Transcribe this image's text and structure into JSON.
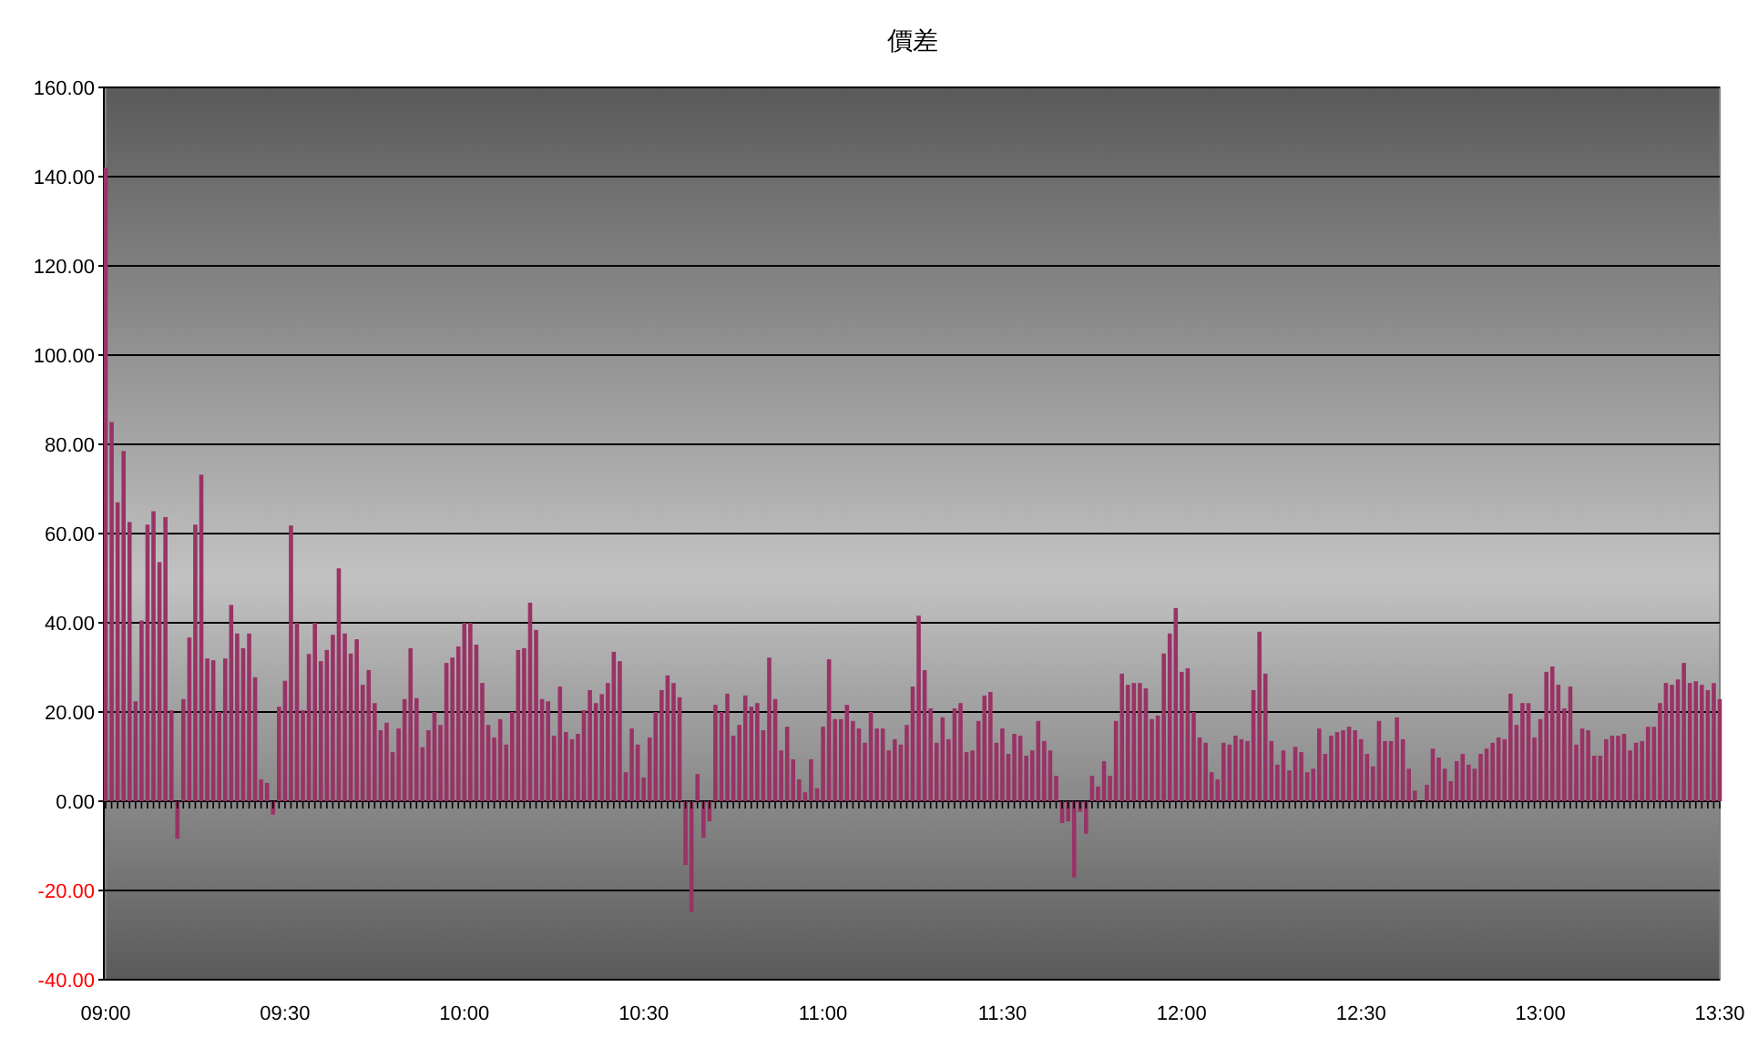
{
  "chart_data": {
    "type": "bar",
    "title": "價差",
    "categories": [
      "09:00",
      null,
      null,
      null,
      null,
      null,
      null,
      null,
      null,
      null,
      null,
      null,
      null,
      null,
      null,
      null,
      null,
      null,
      null,
      null,
      null,
      null,
      null,
      null,
      null,
      null,
      null,
      null,
      null,
      null,
      "09:30",
      null,
      null,
      null,
      null,
      null,
      null,
      null,
      null,
      null,
      null,
      null,
      null,
      null,
      null,
      null,
      null,
      null,
      null,
      null,
      null,
      null,
      null,
      null,
      null,
      null,
      null,
      null,
      null,
      null,
      "10:00",
      null,
      null,
      null,
      null,
      null,
      null,
      null,
      null,
      null,
      null,
      null,
      null,
      null,
      null,
      null,
      null,
      null,
      null,
      null,
      null,
      null,
      null,
      null,
      null,
      null,
      null,
      null,
      null,
      null,
      "10:30",
      null,
      null,
      null,
      null,
      null,
      null,
      null,
      null,
      null,
      null,
      null,
      null,
      null,
      null,
      null,
      null,
      null,
      null,
      null,
      null,
      null,
      null,
      null,
      null,
      null,
      null,
      null,
      null,
      null,
      "11:00",
      null,
      null,
      null,
      null,
      null,
      null,
      null,
      null,
      null,
      null,
      null,
      null,
      null,
      null,
      null,
      null,
      null,
      null,
      null,
      null,
      null,
      null,
      null,
      null,
      null,
      null,
      null,
      null,
      null,
      "11:30",
      null,
      null,
      null,
      null,
      null,
      null,
      null,
      null,
      null,
      null,
      null,
      null,
      null,
      null,
      null,
      null,
      null,
      null,
      null,
      null,
      null,
      null,
      null,
      null,
      null,
      null,
      null,
      null,
      null,
      "12:00",
      null,
      null,
      null,
      null,
      null,
      null,
      null,
      null,
      null,
      null,
      null,
      null,
      null,
      null,
      null,
      null,
      null,
      null,
      null,
      null,
      null,
      null,
      null,
      null,
      null,
      null,
      null,
      null,
      null,
      "12:30",
      null,
      null,
      null,
      null,
      null,
      null,
      null,
      null,
      null,
      null,
      null,
      null,
      null,
      null,
      null,
      null,
      null,
      null,
      null,
      null,
      null,
      null,
      null,
      null,
      null,
      null,
      null,
      null,
      null,
      "13:00",
      null,
      null,
      null,
      null,
      null,
      null,
      null,
      null,
      null,
      null,
      null,
      null,
      null,
      null,
      null,
      null,
      null,
      null,
      null,
      null,
      null,
      null,
      null,
      null,
      null,
      null,
      null,
      null,
      null,
      "13:30"
    ],
    "values": [
      142,
      85,
      67,
      78.5,
      62.6,
      22.4,
      40.5,
      62,
      65,
      53.6,
      63.7,
      20.4,
      -8.4,
      22.9,
      36.7,
      62,
      73.2,
      32,
      31.6,
      20,
      32,
      44,
      37.6,
      34.3,
      37.6,
      27.8,
      4.9,
      4.1,
      -3,
      21.2,
      27,
      61.8,
      40,
      20.4,
      33,
      40,
      31.4,
      33.9,
      37.3,
      52.2,
      37.6,
      33.1,
      36.3,
      26.1,
      29.4,
      22,
      15.9,
      17.6,
      11,
      16.3,
      22.9,
      34.3,
      23.1,
      12.1,
      15.9,
      20,
      17.1,
      31,
      32.2,
      34.7,
      40,
      40,
      35.1,
      26.5,
      17.1,
      14.3,
      18.4,
      12.7,
      20,
      33.9,
      34.3,
      44.5,
      38.4,
      22.9,
      22.4,
      14.7,
      25.7,
      15.5,
      13.9,
      15.1,
      20.4,
      24.9,
      22,
      24,
      26.5,
      33.5,
      31.4,
      6.5,
      16.3,
      12.7,
      5.3,
      14.3,
      20,
      24.9,
      28.2,
      26.5,
      23.3,
      -14.3,
      -24.9,
      6.1,
      -8.2,
      -4.5,
      21.6,
      20,
      24.1,
      14.7,
      17.1,
      23.7,
      21.2,
      22,
      15.9,
      32.2,
      22.9,
      11.4,
      16.7,
      9.4,
      4.9,
      2,
      9.4,
      2.9,
      16.7,
      31.8,
      18.4,
      18.4,
      21.6,
      18,
      16.3,
      13.1,
      20,
      16.3,
      16.3,
      11.4,
      13.9,
      12.7,
      17.1,
      25.7,
      41.6,
      29.4,
      20.8,
      13.1,
      18.8,
      13.9,
      20.8,
      22,
      11,
      11.4,
      18,
      23.7,
      24.5,
      13.1,
      16.3,
      10.6,
      15.1,
      14.7,
      10.2,
      11.4,
      18,
      13.5,
      11.4,
      5.7,
      -4.9,
      -4.5,
      -17.1,
      -2.4,
      -7.3,
      5.7,
      3.3,
      9,
      5.7,
      18,
      28.6,
      26.1,
      26.5,
      26.5,
      25.3,
      18.4,
      19.2,
      33.1,
      37.6,
      43.3,
      29,
      29.8,
      20,
      14.3,
      13.1,
      6.5,
      4.9,
      13.1,
      12.7,
      14.7,
      13.9,
      13.5,
      24.9,
      38,
      28.6,
      13.5,
      8.2,
      11.4,
      6.9,
      12.2,
      11,
      6.5,
      7.3,
      16.3,
      10.6,
      14.7,
      15.5,
      15.9,
      16.7,
      15.9,
      13.9,
      10.6,
      7.8,
      18,
      13.5,
      13.5,
      18.8,
      13.9,
      7.3,
      2.4,
      null,
      3.7,
      11.8,
      9.8,
      7.3,
      4.5,
      9,
      10.6,
      8.2,
      7.3,
      10.6,
      11.8,
      13.1,
      14.3,
      13.9,
      24.1,
      17.1,
      22,
      22,
      14.3,
      18.4,
      29,
      30.2,
      26.1,
      20.8,
      25.7,
      12.7,
      16.3,
      15.9,
      10.2,
      10.2,
      13.9,
      14.7,
      14.7,
      15.1,
      11.4,
      13.1,
      13.5,
      16.7,
      16.7,
      22,
      26.5,
      26.1,
      27.3,
      31,
      26.5,
      26.9,
      26.1,
      24.9,
      26.5,
      22.9
    ],
    "color": "#993366",
    "ylim": [
      -40,
      160
    ],
    "yticks": [
      {
        "value": -40,
        "label": "-40.00"
      },
      {
        "value": -20,
        "label": "-20.00"
      },
      {
        "value": 0,
        "label": "0.00"
      },
      {
        "value": 20,
        "label": "20.00"
      },
      {
        "value": 40,
        "label": "40.00"
      },
      {
        "value": 60,
        "label": "60.00"
      },
      {
        "value": 80,
        "label": "80.00"
      },
      {
        "value": 100,
        "label": "100.00"
      },
      {
        "value": 120,
        "label": "120.00"
      },
      {
        "value": 140,
        "label": "140.00"
      },
      {
        "value": 160,
        "label": "160.00"
      }
    ],
    "grid": "y"
  }
}
